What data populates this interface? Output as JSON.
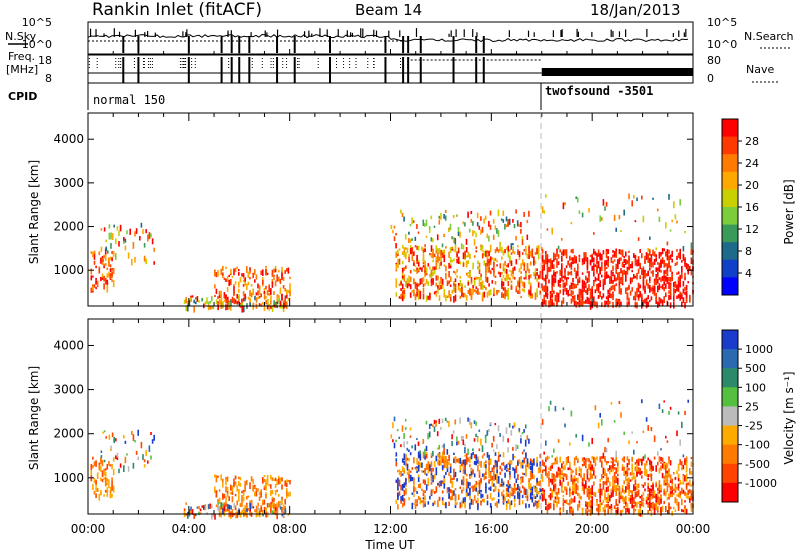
{
  "header": {
    "title": "Rankin Inlet (fitACF)",
    "beam": "Beam 14",
    "date": "18/Jan/2013"
  },
  "summary_panel": {
    "nsky_label": "N.Sky",
    "nsky_ticks": [
      "10^5",
      "10^0"
    ],
    "nsearch_label": "N.Search",
    "nsearch_ticks": [
      "10^5",
      "10^0"
    ],
    "freq_label": "Freq.",
    "freq_unit": "[MHz]",
    "freq_ticks": [
      "18",
      "8"
    ],
    "nave_label": "Nave",
    "nave_ticks": [
      "80",
      "0"
    ],
    "cpid_label": "CPID",
    "cpid_segments": [
      {
        "name": "normal 150",
        "start_hour": 0,
        "end_hour": 18
      },
      {
        "name": "twofsound -3501",
        "start_hour": 18,
        "end_hour": 24
      }
    ]
  },
  "colorbars": {
    "power": {
      "label": "Power [dB]",
      "ticks": [
        "28",
        "24",
        "20",
        "16",
        "12",
        "8",
        "4"
      ],
      "colors": [
        "#ff0000",
        "#ff3a00",
        "#ff7a00",
        "#ffa800",
        "#c8d000",
        "#7ccd3c",
        "#3a9a5a",
        "#1d6a8a",
        "#1040c8",
        "#0000ff"
      ]
    },
    "velocity": {
      "label": "Velocity [m s⁻¹]",
      "ticks": [
        "1000",
        "500",
        "100",
        "25",
        "-25",
        "-100",
        "-500",
        "-1000"
      ],
      "colors": [
        "#1a3ccc",
        "#2a6ab0",
        "#2c8a6a",
        "#55c040",
        "#bbbbbb",
        "#ffaa00",
        "#ff7a00",
        "#ff4400",
        "#ff0000"
      ]
    }
  },
  "chart_data": [
    {
      "type": "heatmap",
      "name": "power",
      "xlabel": "",
      "ylabel": "Slant Range [km]",
      "xlim": [
        0,
        24
      ],
      "ylim": [
        180,
        4600
      ],
      "y_ticks": [
        "1000",
        "2000",
        "3000",
        "4000"
      ],
      "x_ticks": [
        "00:00",
        "04:00",
        "08:00",
        "12:00",
        "16:00",
        "20:00",
        "00:00"
      ],
      "dominant_color_by_hour": [
        {
          "hour_range": [
            0,
            2.5
          ],
          "range_km": [
            600,
            2100
          ],
          "power_db": 20
        },
        {
          "hour_range": [
            5,
            8
          ],
          "range_km": [
            200,
            1200
          ],
          "power_db": 20
        },
        {
          "hour_range": [
            12.5,
            18
          ],
          "range_km": [
            500,
            1500
          ],
          "power_db": 22
        },
        {
          "hour_range": [
            18,
            24
          ],
          "range_km": [
            300,
            1500
          ],
          "power_db": 28
        }
      ]
    },
    {
      "type": "heatmap",
      "name": "velocity",
      "xlabel": "Time UT",
      "ylabel": "Slant Range [km]",
      "xlim": [
        0,
        24
      ],
      "ylim": [
        180,
        4600
      ],
      "y_ticks": [
        "1000",
        "2000",
        "3000",
        "4000"
      ],
      "x_ticks": [
        "00:00",
        "04:00",
        "08:00",
        "12:00",
        "16:00",
        "20:00",
        "00:00"
      ],
      "dominant_color_by_hour": [
        {
          "hour_range": [
            0,
            2.5
          ],
          "range_km": [
            600,
            2100
          ],
          "velocity_ms": -100
        },
        {
          "hour_range": [
            5,
            8
          ],
          "range_km": [
            200,
            1200
          ],
          "velocity_ms": -100
        },
        {
          "hour_range": [
            14,
            17
          ],
          "range_km": [
            800,
            1500
          ],
          "velocity_ms": 500
        },
        {
          "hour_range": [
            18,
            24
          ],
          "range_km": [
            300,
            1500
          ],
          "velocity_ms": -100
        }
      ]
    }
  ]
}
